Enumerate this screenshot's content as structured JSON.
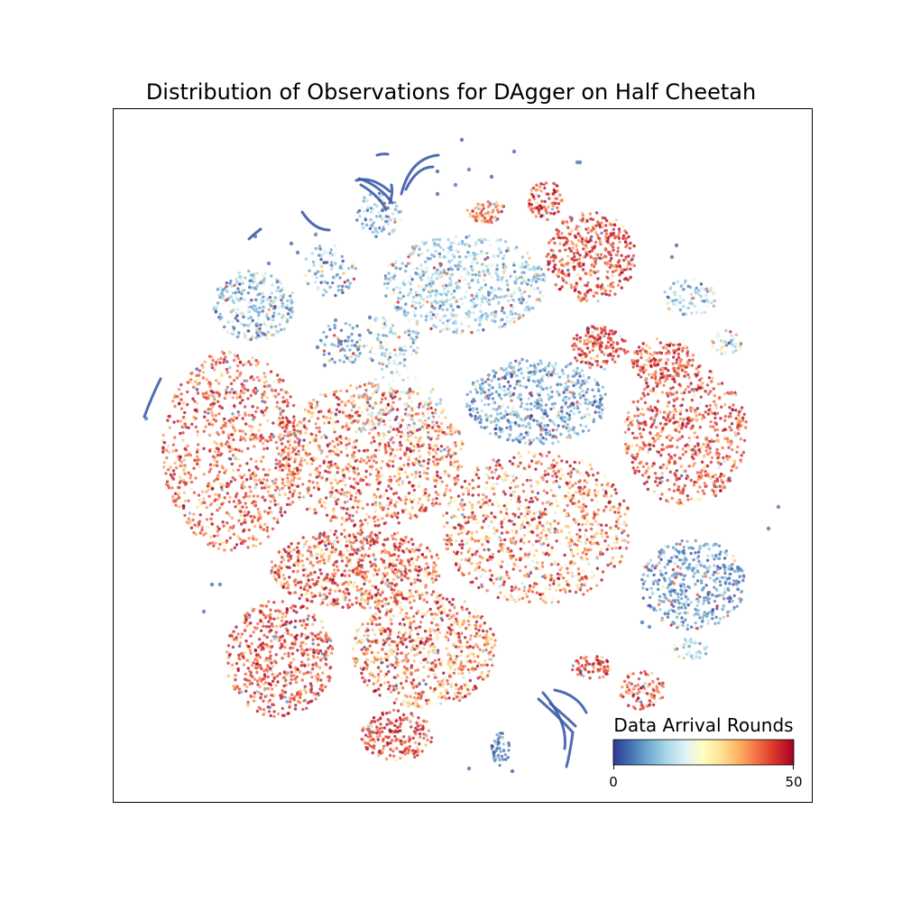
{
  "chart_data": {
    "type": "scatter",
    "title": "Distribution of Observations for DAgger on Half Cheetah",
    "xlabel": "",
    "ylabel": "",
    "axes_ticks": false,
    "grid": false,
    "colorbar": {
      "label": "Data Arrival Rounds",
      "min": 0,
      "max": 50,
      "tick_labels": [
        "0",
        "50"
      ],
      "colormap": "RdYlBu_r",
      "placement": "bottom-right inside axes",
      "orientation": "horizontal"
    },
    "marker_alpha": 0.75,
    "clusters": [
      {
        "id": "left-large",
        "mean_round": 42,
        "spread": 6
      },
      {
        "id": "center-large",
        "mean_round": 40,
        "spread": 8
      },
      {
        "id": "center-right",
        "mean_round": 38,
        "spread": 10
      },
      {
        "id": "upper-middle",
        "mean_round": 14,
        "spread": 6
      },
      {
        "id": "middle-blue",
        "mean_round": 9,
        "spread": 5
      },
      {
        "id": "right-upper",
        "mean_round": 44,
        "spread": 5
      },
      {
        "id": "right-middle",
        "mean_round": 43,
        "spread": 6
      },
      {
        "id": "right-lower-blue",
        "mean_round": 8,
        "spread": 5
      },
      {
        "id": "lower-left",
        "mean_round": 42,
        "spread": 7
      },
      {
        "id": "lower-middle",
        "mean_round": 38,
        "spread": 10
      },
      {
        "id": "bottom-left",
        "mean_round": 44,
        "spread": 6
      },
      {
        "id": "top-left-small",
        "mean_round": 12,
        "spread": 6
      }
    ],
    "trajectory_curves_round": 3
  }
}
